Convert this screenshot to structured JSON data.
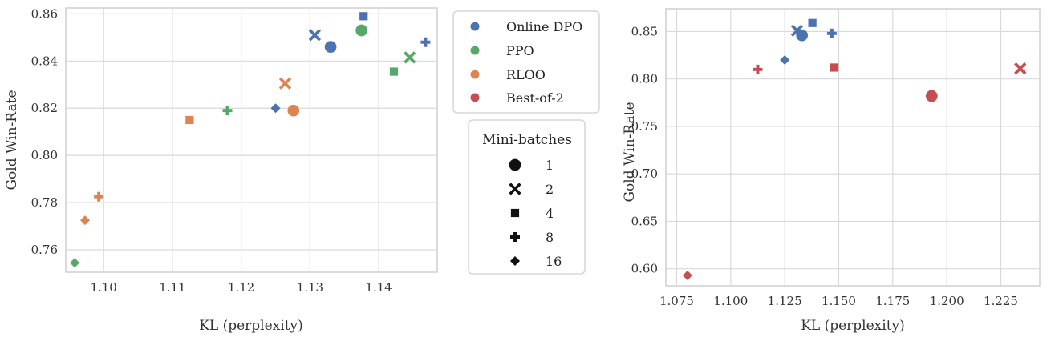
{
  "colors": {
    "Online DPO": "#4c72b0",
    "PPO": "#55a868",
    "RLOO": "#dd8452",
    "Best-of-2": "#c44e52",
    "marker_legend": "#111111",
    "grid": "#d9d9d9",
    "frame": "#cfcfcf"
  },
  "legend": {
    "methods": [
      "Online DPO",
      "PPO",
      "RLOO",
      "Best-of-2"
    ],
    "minibatch_title": "Mini-batches",
    "minibatch_labels": [
      "1",
      "2",
      "4",
      "8",
      "16"
    ],
    "marker_shapes": [
      "circle",
      "x",
      "square",
      "plus",
      "diamond"
    ]
  },
  "chart_data": [
    {
      "type": "scatter",
      "xlabel": "KL (perplexity)",
      "ylabel": "Gold Win-Rate",
      "xlim": [
        1.0945,
        1.1485
      ],
      "ylim": [
        0.7505,
        0.8625
      ],
      "xticks": [
        1.1,
        1.11,
        1.12,
        1.13,
        1.14
      ],
      "xtick_labels": [
        "1.10",
        "1.11",
        "1.12",
        "1.13",
        "1.14"
      ],
      "yticks": [
        0.76,
        0.78,
        0.8,
        0.82,
        0.84,
        0.86
      ],
      "ytick_labels": [
        "0.76",
        "0.78",
        "0.80",
        "0.82",
        "0.84",
        "0.86"
      ],
      "grid": true,
      "series": [
        {
          "name": "Online DPO",
          "points": [
            {
              "x": 1.133,
              "y": 0.846,
              "minibatches": "1"
            },
            {
              "x": 1.1307,
              "y": 0.851,
              "minibatches": "2"
            },
            {
              "x": 1.1378,
              "y": 0.859,
              "minibatches": "4"
            },
            {
              "x": 1.1468,
              "y": 0.848,
              "minibatches": "8"
            },
            {
              "x": 1.125,
              "y": 0.82,
              "minibatches": "16"
            }
          ]
        },
        {
          "name": "PPO",
          "points": [
            {
              "x": 1.1375,
              "y": 0.853,
              "minibatches": "1"
            },
            {
              "x": 1.1445,
              "y": 0.8415,
              "minibatches": "2"
            },
            {
              "x": 1.1422,
              "y": 0.8355,
              "minibatches": "4"
            },
            {
              "x": 1.118,
              "y": 0.819,
              "minibatches": "8"
            },
            {
              "x": 1.0958,
              "y": 0.7545,
              "minibatches": "16"
            }
          ]
        },
        {
          "name": "RLOO",
          "points": [
            {
              "x": 1.1276,
              "y": 0.819,
              "minibatches": "1"
            },
            {
              "x": 1.1264,
              "y": 0.8305,
              "minibatches": "2"
            },
            {
              "x": 1.1125,
              "y": 0.815,
              "minibatches": "4"
            },
            {
              "x": 1.0993,
              "y": 0.7825,
              "minibatches": "8"
            },
            {
              "x": 1.0973,
              "y": 0.7725,
              "minibatches": "16"
            }
          ]
        }
      ]
    },
    {
      "type": "scatter",
      "xlabel": "KL (perplexity)",
      "ylabel": "Gold Win-Rate",
      "xlim": [
        1.07,
        1.243
      ],
      "ylim": [
        0.582,
        0.874
      ],
      "xticks": [
        1.075,
        1.1,
        1.125,
        1.15,
        1.175,
        1.2,
        1.225
      ],
      "xtick_labels": [
        "1.075",
        "1.100",
        "1.125",
        "1.150",
        "1.175",
        "1.200",
        "1.225"
      ],
      "yticks": [
        0.6,
        0.65,
        0.7,
        0.75,
        0.8,
        0.85
      ],
      "ytick_labels": [
        "0.60",
        "0.65",
        "0.70",
        "0.75",
        "0.80",
        "0.85"
      ],
      "grid": true,
      "series": [
        {
          "name": "Online DPO",
          "points": [
            {
              "x": 1.133,
              "y": 0.846,
              "minibatches": "1"
            },
            {
              "x": 1.1307,
              "y": 0.851,
              "minibatches": "2"
            },
            {
              "x": 1.1378,
              "y": 0.859,
              "minibatches": "4"
            },
            {
              "x": 1.1468,
              "y": 0.848,
              "minibatches": "8"
            },
            {
              "x": 1.125,
              "y": 0.82,
              "minibatches": "16"
            }
          ]
        },
        {
          "name": "Best-of-2",
          "points": [
            {
              "x": 1.193,
              "y": 0.782,
              "minibatches": "1"
            },
            {
              "x": 1.234,
              "y": 0.811,
              "minibatches": "2"
            },
            {
              "x": 1.148,
              "y": 0.812,
              "minibatches": "4"
            },
            {
              "x": 1.1125,
              "y": 0.81,
              "minibatches": "8"
            },
            {
              "x": 1.08,
              "y": 0.593,
              "minibatches": "16"
            }
          ]
        }
      ]
    }
  ]
}
